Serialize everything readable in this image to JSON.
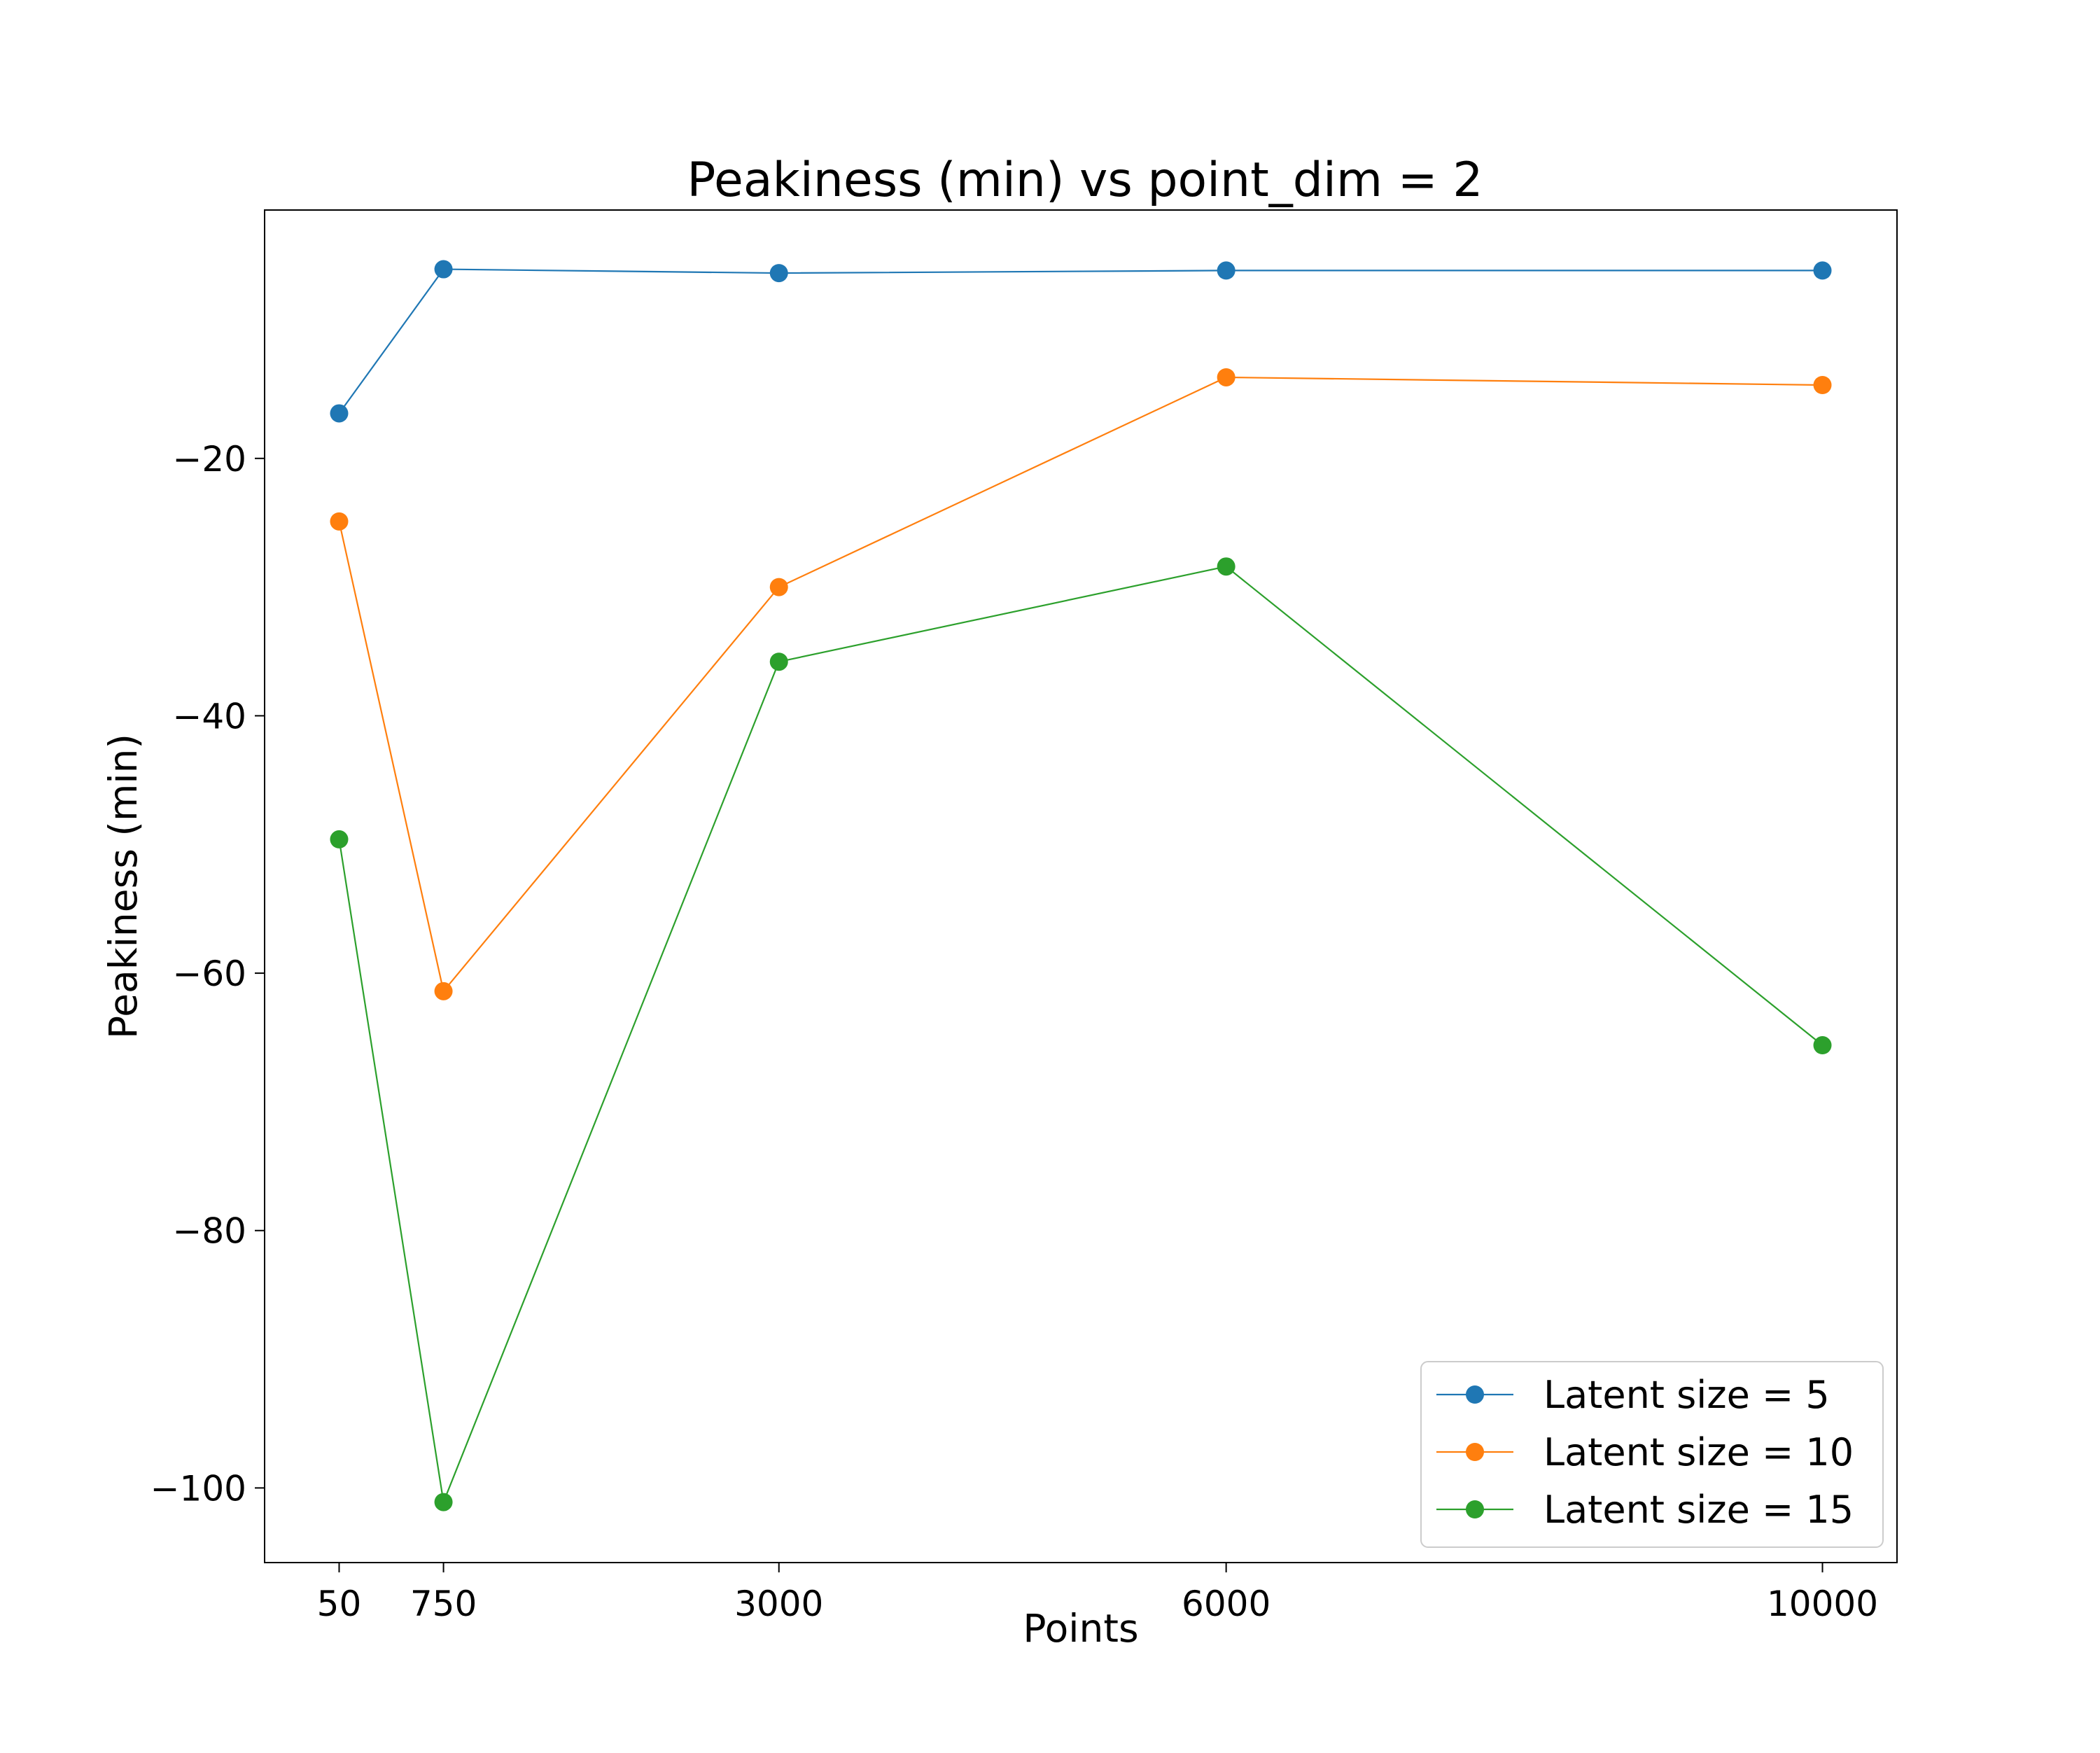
{
  "chart_data": {
    "type": "line",
    "title": "Peakiness (min) vs point_dim = 2",
    "xlabel": "Points",
    "ylabel": "Peakiness (min)",
    "x": [
      50,
      750,
      3000,
      6000,
      10000
    ],
    "x_ticks": [
      "50",
      "750",
      "3000",
      "6000",
      "10000"
    ],
    "xlim": [
      -450,
      10500
    ],
    "ylim": [
      -105.8,
      -0.7
    ],
    "y_ticks": [
      -20,
      -40,
      -60,
      -80,
      -100
    ],
    "y_tick_labels": [
      "−20",
      "−40",
      "−60",
      "−80",
      "−100"
    ],
    "grid": false,
    "legend_position": "lower-right",
    "series": [
      {
        "name": "Latent size = 5",
        "color": "#1f77b4",
        "values": [
          -16.5,
          -5.3,
          -5.6,
          -5.4,
          -5.4
        ]
      },
      {
        "name": "Latent size = 10",
        "color": "#ff7f0e",
        "values": [
          -24.9,
          -61.4,
          -30.0,
          -13.7,
          -14.3
        ]
      },
      {
        "name": "Latent size = 15",
        "color": "#2ca02c",
        "values": [
          -49.6,
          -101.1,
          -35.8,
          -28.4,
          -65.6
        ]
      }
    ]
  }
}
